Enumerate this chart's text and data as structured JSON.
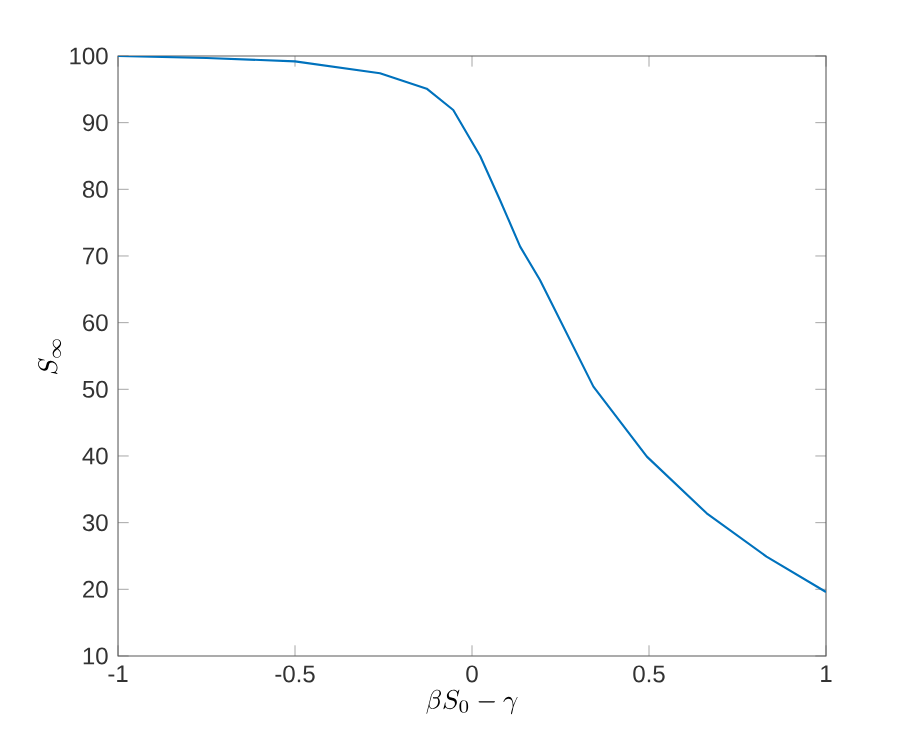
{
  "chart_data": {
    "type": "line",
    "xlabel": "\\beta S_0-\\gamma",
    "ylabel": "S_\\infty",
    "x": [
      -1,
      -0.75,
      -0.5,
      -0.26,
      -0.128,
      -0.053,
      0.023,
      0.079,
      0.136,
      0.192,
      0.343,
      0.494,
      0.663,
      0.832,
      1
    ],
    "series": [
      {
        "color": "#0072bd",
        "values": [
          100,
          99.7,
          99.2,
          97.4,
          95.1,
          91.9,
          85.0,
          78.4,
          71.4,
          66.4,
          50.4,
          39.9,
          31.4,
          24.9,
          19.6
        ]
      }
    ],
    "xlim": [
      -1,
      1
    ],
    "ylim": [
      10,
      100
    ],
    "xticks": [
      -1,
      -0.5,
      0,
      0.5,
      1
    ],
    "yticks": [
      10,
      20,
      30,
      40,
      50,
      60,
      70,
      80,
      90,
      100
    ],
    "grid": false,
    "marker": "none",
    "line_style": "solid"
  }
}
